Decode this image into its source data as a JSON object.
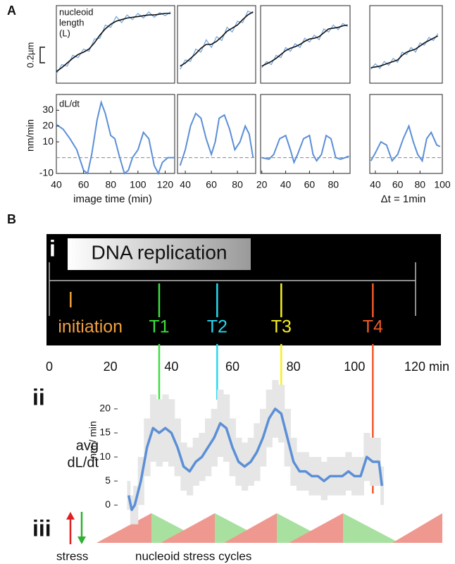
{
  "panel_labels": {
    "a": "A",
    "b": "B",
    "i": "i",
    "ii": "ii",
    "iii": "iii"
  },
  "chart_data": [
    {
      "type": "length",
      "annotation": [
        "nucleoid",
        "length",
        "(L)"
      ],
      "scale_bar": {
        "value": 0.2,
        "label": "0.2µm"
      },
      "x": [
        40,
        44,
        48,
        52,
        56,
        60,
        64,
        68,
        72,
        76,
        80,
        84,
        88,
        92,
        96,
        100,
        104,
        108,
        112,
        116,
        120,
        124
      ],
      "series": [
        {
          "color": "#6fa3dc",
          "values": [
            0.12,
            0.24,
            0.22,
            0.36,
            0.33,
            0.44,
            0.41,
            0.57,
            0.58,
            0.75,
            0.72,
            0.86,
            0.78,
            0.88,
            0.82,
            0.9,
            0.84,
            0.92,
            0.85,
            0.91,
            0.87,
            0.92
          ]
        },
        {
          "color": "#111111",
          "values": [
            0.15,
            0.2,
            0.26,
            0.32,
            0.37,
            0.4,
            0.44,
            0.52,
            0.62,
            0.7,
            0.76,
            0.8,
            0.82,
            0.84,
            0.85,
            0.86,
            0.87,
            0.88,
            0.88,
            0.89,
            0.9,
            0.9
          ]
        }
      ],
      "xlim": [
        40,
        127
      ],
      "ylim": [
        0,
        1
      ]
    },
    {
      "type": "length",
      "x": [
        36,
        40,
        44,
        48,
        52,
        56,
        60,
        64,
        68,
        72,
        76,
        80,
        84,
        88,
        92
      ],
      "series": [
        {
          "color": "#6fa3dc",
          "values": [
            0.18,
            0.3,
            0.28,
            0.44,
            0.4,
            0.56,
            0.46,
            0.6,
            0.55,
            0.72,
            0.66,
            0.8,
            0.78,
            0.93,
            0.9
          ]
        },
        {
          "color": "#111111",
          "values": [
            0.22,
            0.26,
            0.32,
            0.38,
            0.45,
            0.5,
            0.5,
            0.54,
            0.6,
            0.67,
            0.71,
            0.75,
            0.82,
            0.88,
            0.92
          ]
        }
      ],
      "xlim": [
        34,
        94
      ],
      "ylim": [
        0,
        1
      ]
    },
    {
      "type": "length",
      "x": [
        20,
        24,
        28,
        32,
        36,
        40,
        44,
        48,
        52,
        56,
        60,
        64,
        68,
        72,
        76,
        80,
        84,
        88,
        92
      ],
      "series": [
        {
          "color": "#6fa3dc",
          "values": [
            0.2,
            0.28,
            0.24,
            0.36,
            0.33,
            0.46,
            0.41,
            0.51,
            0.46,
            0.58,
            0.53,
            0.62,
            0.56,
            0.7,
            0.66,
            0.75,
            0.69,
            0.77,
            0.73
          ]
        },
        {
          "color": "#111111",
          "values": [
            0.22,
            0.25,
            0.28,
            0.32,
            0.37,
            0.42,
            0.45,
            0.47,
            0.5,
            0.54,
            0.57,
            0.58,
            0.6,
            0.65,
            0.7,
            0.71,
            0.72,
            0.74,
            0.75
          ]
        }
      ],
      "xlim": [
        19,
        94
      ],
      "ylim": [
        0,
        1
      ]
    },
    {
      "type": "length",
      "x": [
        36,
        40,
        44,
        48,
        52,
        56,
        60,
        64,
        68,
        72,
        76,
        80,
        84,
        88,
        92,
        96
      ],
      "series": [
        {
          "color": "#6fa3dc",
          "values": [
            0.18,
            0.25,
            0.19,
            0.28,
            0.23,
            0.32,
            0.27,
            0.4,
            0.37,
            0.46,
            0.4,
            0.52,
            0.49,
            0.59,
            0.55,
            0.64
          ]
        },
        {
          "color": "#111111",
          "values": [
            0.2,
            0.21,
            0.22,
            0.24,
            0.26,
            0.28,
            0.3,
            0.36,
            0.4,
            0.42,
            0.44,
            0.48,
            0.52,
            0.55,
            0.58,
            0.61
          ]
        }
      ],
      "xlim": [
        35,
        100
      ],
      "ylim": [
        0,
        1
      ]
    },
    {
      "type": "rate",
      "annotation": "dL/dt",
      "ylabel": "nm/min",
      "xlabel": "image time (min)",
      "color": "#5b8fd6",
      "hline": 0,
      "x": [
        40,
        45,
        50,
        55,
        60,
        63,
        66,
        70,
        73,
        76,
        80,
        83,
        86,
        90,
        93,
        96,
        100,
        104,
        108,
        112,
        115,
        118,
        122,
        127
      ],
      "values": [
        21,
        18,
        12,
        5,
        -8,
        -10,
        2,
        24,
        35,
        28,
        14,
        12,
        2,
        -10,
        -8,
        0,
        5,
        16,
        12,
        -5,
        -10,
        -3,
        0,
        0
      ],
      "xlim": [
        40,
        127
      ],
      "ylim": [
        -10,
        40
      ],
      "xticks": [
        40,
        60,
        80,
        100,
        120
      ],
      "yticks": [
        -10,
        10,
        20,
        30
      ]
    },
    {
      "type": "rate",
      "color": "#5b8fd6",
      "hline": 0,
      "x": [
        36,
        40,
        44,
        48,
        52,
        56,
        60,
        63,
        66,
        70,
        74,
        78,
        82,
        86,
        89,
        92
      ],
      "values": [
        -5,
        5,
        20,
        28,
        25,
        12,
        2,
        10,
        25,
        27,
        18,
        5,
        10,
        20,
        15,
        0
      ],
      "xlim": [
        34,
        94
      ],
      "ylim": [
        -10,
        40
      ],
      "xticks": [
        40,
        60,
        80
      ]
    },
    {
      "type": "rate",
      "color": "#5b8fd6",
      "hline": 0,
      "x": [
        20,
        26,
        30,
        35,
        40,
        44,
        47,
        50,
        55,
        60,
        63,
        66,
        70,
        74,
        78,
        82,
        86,
        90,
        93
      ],
      "values": [
        0,
        -1,
        2,
        12,
        14,
        5,
        -3,
        2,
        12,
        14,
        2,
        -2,
        2,
        14,
        12,
        0,
        -1,
        0,
        1
      ],
      "xlim": [
        19,
        94
      ],
      "ylim": [
        -10,
        40
      ],
      "xticks": [
        20,
        40,
        60,
        80
      ]
    },
    {
      "type": "rate",
      "annotation": "Δt = 1min",
      "color": "#5b8fd6",
      "hline": 0,
      "x": [
        36,
        40,
        45,
        50,
        55,
        60,
        65,
        70,
        74,
        78,
        82,
        86,
        90,
        95,
        98
      ],
      "values": [
        -2,
        3,
        10,
        8,
        -2,
        2,
        12,
        20,
        10,
        2,
        -2,
        12,
        16,
        8,
        7
      ],
      "xlim": [
        35,
        100
      ],
      "ylim": [
        -10,
        40
      ],
      "xticks": [
        40,
        60,
        80,
        100
      ]
    },
    {
      "type": "timeline",
      "xlim": [
        0,
        120
      ],
      "xticks": [
        0,
        20,
        40,
        60,
        80,
        100,
        {
          "value": 120,
          "label": "120 min"
        }
      ],
      "span": {
        "label": "DNA replication",
        "start": 6,
        "end": 66
      },
      "events": [
        {
          "label": "initiation",
          "value": 7,
          "color": "#f0a040"
        },
        {
          "label": "T1",
          "value": 36,
          "color": "#3ee03e"
        },
        {
          "label": "T2",
          "value": 55,
          "color": "#27d8f0"
        },
        {
          "label": "T3",
          "value": 76,
          "color": "#f5f020"
        },
        {
          "label": "T4",
          "value": 106,
          "color": "#f05a28"
        }
      ]
    },
    {
      "type": "band-line",
      "title": [
        "avg",
        "dL/dt"
      ],
      "ylabel": "nm / min",
      "color": "#5b8fd6",
      "band_color": "#e6e6e6",
      "x": [
        26,
        27,
        28,
        30,
        32,
        34,
        36,
        38,
        40,
        42,
        44,
        46,
        48,
        50,
        52,
        54,
        56,
        58,
        60,
        62,
        64,
        66,
        68,
        70,
        72,
        74,
        76,
        78,
        80,
        82,
        84,
        86,
        88,
        90,
        92,
        94,
        96,
        98,
        100,
        102,
        104,
        106,
        108,
        109
      ],
      "values": [
        2,
        -1,
        0,
        5,
        12,
        16,
        15,
        16,
        15,
        12,
        8,
        7,
        9,
        10,
        12,
        14,
        17,
        16,
        12,
        9,
        8,
        9,
        11,
        14,
        18,
        20,
        19,
        14,
        9,
        7,
        7,
        6,
        6,
        5,
        6,
        6,
        6,
        7,
        6,
        6,
        10,
        9,
        9,
        4
      ],
      "errors": [
        3,
        3,
        4,
        5,
        6,
        7,
        7,
        7,
        7,
        6,
        5,
        5,
        5,
        5,
        6,
        6,
        7,
        7,
        6,
        5,
        5,
        5,
        6,
        6,
        6,
        6,
        6,
        6,
        5,
        4,
        4,
        4,
        4,
        4,
        4,
        4,
        4,
        4,
        4,
        4,
        5,
        5,
        5,
        4
      ],
      "xlim": [
        0,
        120
      ],
      "ylim": [
        -2,
        26
      ],
      "yticks": [
        0,
        5,
        10,
        15,
        20
      ]
    }
  ],
  "stress_cycles": {
    "arrow_label": "stress",
    "label": "nucleoid stress cycles"
  }
}
